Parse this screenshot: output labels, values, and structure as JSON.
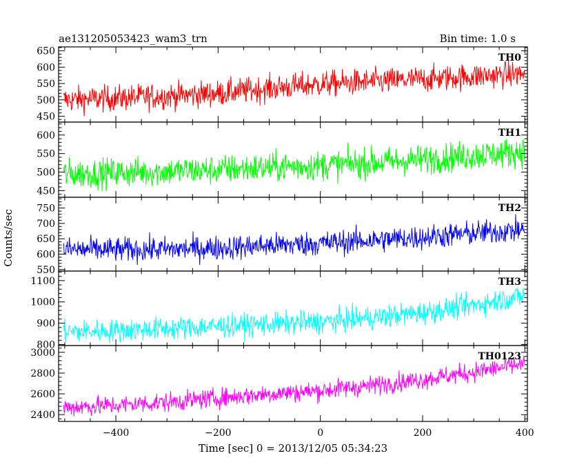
{
  "header": {
    "title": "ae131205053423_wam3_trn",
    "bin_time": "Bin time: 1.0 s"
  },
  "chart_data": {
    "type": "line",
    "xlabel": "Time [sec] 0 = 2013/12/05 05:34:23",
    "ylabel": "Counts/sec",
    "xlim": [
      -512,
      405
    ],
    "x_ticks": [
      -400,
      -200,
      0,
      200,
      400
    ],
    "x_tick_labels": [
      "−400",
      "−200",
      "0",
      "200",
      "400"
    ],
    "x_sample": [
      -500,
      -400,
      -300,
      -200,
      -100,
      0,
      100,
      200,
      300,
      400
    ],
    "panels": [
      {
        "name": "TH0",
        "color": "#ff0000",
        "ylim": [
          432,
          662
        ],
        "y_ticks": [
          450,
          500,
          550,
          600,
          650
        ],
        "trend": [
          500,
          505,
          512,
          520,
          535,
          548,
          555,
          563,
          572,
          580
        ],
        "noise": 28
      },
      {
        "name": "TH1",
        "color": "#00ff00",
        "ylim": [
          432,
          635
        ],
        "y_ticks": [
          450,
          500,
          550,
          600
        ],
        "trend": [
          495,
          498,
          502,
          506,
          512,
          518,
          525,
          534,
          545,
          555
        ],
        "noise": 28
      },
      {
        "name": "TH2",
        "color": "#0000ff",
        "ylim": [
          545,
          785
        ],
        "y_ticks": [
          550,
          600,
          650,
          700,
          750
        ],
        "trend": [
          615,
          614,
          616,
          620,
          628,
          635,
          645,
          655,
          668,
          680
        ],
        "noise": 28
      },
      {
        "name": "TH3",
        "color": "#00ffff",
        "ylim": [
          795,
          1145
        ],
        "y_ticks": [
          800,
          900,
          1000,
          1100
        ],
        "trend": [
          860,
          865,
          875,
          885,
          895,
          905,
          925,
          950,
          985,
          1030
        ],
        "noise": 38
      },
      {
        "name": "TH0123",
        "color": "#ff00ff",
        "ylim": [
          2335,
          3065
        ],
        "y_ticks": [
          2400,
          2600,
          2800,
          3000
        ],
        "trend": [
          2470,
          2490,
          2520,
          2560,
          2600,
          2630,
          2680,
          2740,
          2810,
          2890
        ],
        "noise": 65
      }
    ]
  }
}
